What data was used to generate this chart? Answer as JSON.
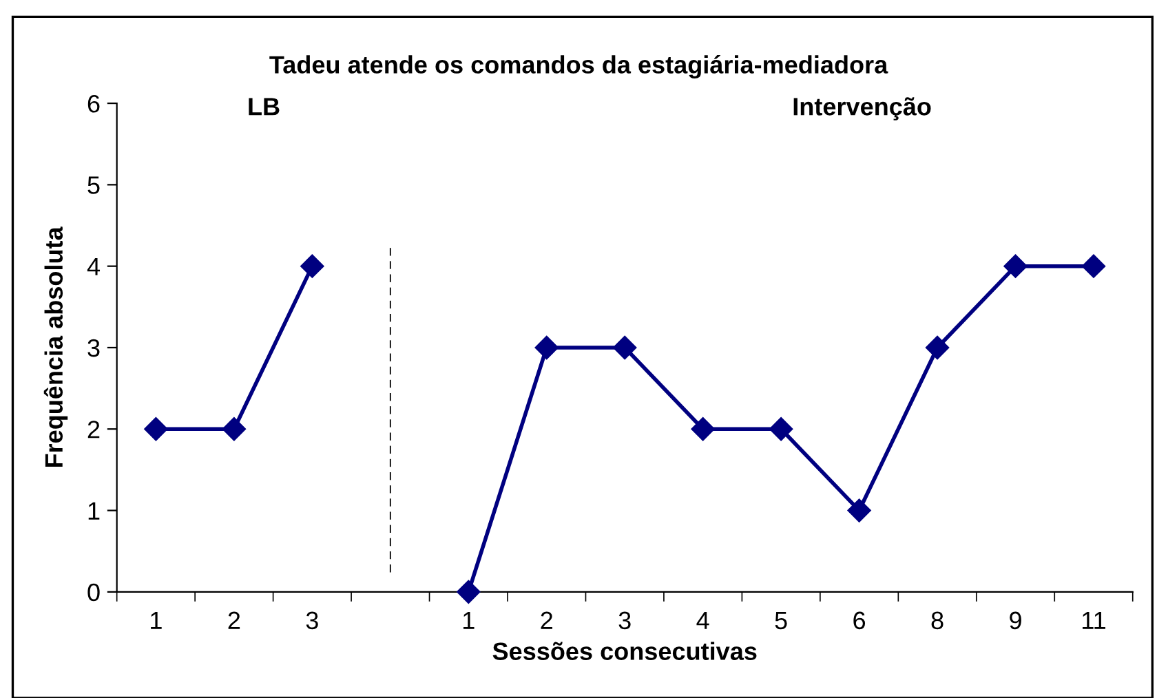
{
  "chart_data": {
    "type": "line",
    "title": "Tadeu atende os comandos da estagiária-mediadora",
    "xlabel": "Sessões consecutivas",
    "ylabel": "Frequência absoluta",
    "annotations": [
      "LB",
      "Intervenção"
    ],
    "categories": [
      "1",
      "2",
      "3",
      null,
      "1",
      "2",
      "3",
      "4",
      "5",
      "6",
      "8",
      "9",
      "11"
    ],
    "series": [
      {
        "color": "#000080",
        "values": [
          2,
          2,
          4,
          null,
          0,
          3,
          3,
          2,
          2,
          1,
          3,
          4,
          4
        ]
      }
    ],
    "ylim": [
      0,
      6
    ],
    "yticks": [
      0,
      1,
      2,
      3,
      4,
      5,
      6
    ],
    "marker": "diamond",
    "line_style": "solid",
    "grid": false,
    "legend": false
  }
}
